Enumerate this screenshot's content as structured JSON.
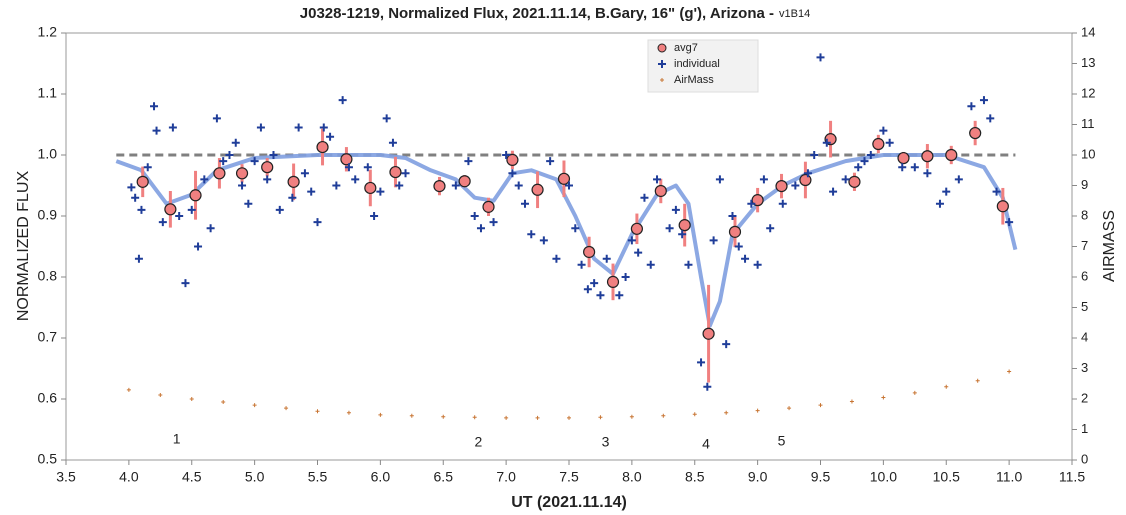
{
  "chart_data": {
    "type": "scatter",
    "title": "J0328-1219, Normalized Flux, 2021.11.14, B.Gary, 16\" (g'), Arizona -",
    "subtitle": "v1B14",
    "x_label": "UT (2021.11.14)",
    "y_label": "NORMALIZED FLUX",
    "y2_label": "AIRMASS",
    "xlim": [
      3.5,
      11.5
    ],
    "ylim": [
      0.5,
      1.2
    ],
    "y2lim": [
      0,
      14
    ],
    "xticks": [
      {
        "value": 3.5,
        "label": "3.5"
      },
      {
        "value": 4,
        "label": "4.0"
      },
      {
        "value": 4.5,
        "label": "4.5"
      },
      {
        "value": 5,
        "label": "5.0"
      },
      {
        "value": 5.5,
        "label": "5.5"
      },
      {
        "value": 6,
        "label": "6.0"
      },
      {
        "value": 6.5,
        "label": "6.5"
      },
      {
        "value": 7,
        "label": "7.0"
      },
      {
        "value": 7.5,
        "label": "7.5"
      },
      {
        "value": 8,
        "label": "8.0"
      },
      {
        "value": 8.5,
        "label": "8.5"
      },
      {
        "value": 9,
        "label": "9.0"
      },
      {
        "value": 9.5,
        "label": "9.5"
      },
      {
        "value": 10,
        "label": "10.0"
      },
      {
        "value": 10.5,
        "label": "10.5"
      },
      {
        "value": 11,
        "label": "11.0"
      },
      {
        "value": 11.5,
        "label": "11.5"
      }
    ],
    "yticks": [
      {
        "value": 0.5,
        "label": "0.5"
      },
      {
        "value": 0.6,
        "label": "0.6"
      },
      {
        "value": 0.7,
        "label": "0.7"
      },
      {
        "value": 0.8,
        "label": "0.8"
      },
      {
        "value": 0.9,
        "label": "0.9"
      },
      {
        "value": 1.0,
        "label": "1.0"
      },
      {
        "value": 1.1,
        "label": "1.1"
      },
      {
        "value": 1.2,
        "label": "1.2"
      }
    ],
    "y2ticks": [
      0,
      1,
      2,
      3,
      4,
      5,
      6,
      7,
      8,
      9,
      10,
      11,
      12,
      13,
      14
    ],
    "reference_line": {
      "y": 1.0,
      "x": [
        3.9,
        11.05
      ],
      "color": "#808080"
    },
    "model": {
      "color": "#7f9fe0",
      "x": [
        3.9,
        4.1,
        4.3,
        4.5,
        4.7,
        5.0,
        5.5,
        6.0,
        6.2,
        6.4,
        6.6,
        6.75,
        6.9,
        7.05,
        7.2,
        7.4,
        7.55,
        7.7,
        7.85,
        8.0,
        8.2,
        8.35,
        8.45,
        8.55,
        8.62,
        8.7,
        8.8,
        9.0,
        9.2,
        9.4,
        9.7,
        10.0,
        10.5,
        10.8,
        10.95,
        11.05
      ],
      "values": [
        0.99,
        0.975,
        0.92,
        0.935,
        0.975,
        0.995,
        1.0,
        1.0,
        0.995,
        0.975,
        0.96,
        0.93,
        0.925,
        0.97,
        0.975,
        0.96,
        0.9,
        0.83,
        0.805,
        0.87,
        0.935,
        0.95,
        0.92,
        0.8,
        0.72,
        0.76,
        0.87,
        0.92,
        0.95,
        0.97,
        0.99,
        1.0,
        1.0,
        0.98,
        0.93,
        0.845
      ]
    },
    "series": [
      {
        "name": "avg7",
        "color": "#f08080",
        "x": [
          4.11,
          4.33,
          4.53,
          4.72,
          4.9,
          5.1,
          5.31,
          5.54,
          5.73,
          5.92,
          6.12,
          6.47,
          6.67,
          6.86,
          7.05,
          7.25,
          7.46,
          7.66,
          7.85,
          8.04,
          8.23,
          8.42,
          8.61,
          8.82,
          9.0,
          9.19,
          9.38,
          9.58,
          9.77,
          9.96,
          10.16,
          10.35,
          10.54,
          10.73,
          10.95
        ],
        "values": [
          0.956,
          0.911,
          0.934,
          0.97,
          0.97,
          0.98,
          0.956,
          1.013,
          0.993,
          0.946,
          0.972,
          0.949,
          0.957,
          0.915,
          0.992,
          0.943,
          0.961,
          0.841,
          0.792,
          0.879,
          0.941,
          0.885,
          0.707,
          0.874,
          0.926,
          0.949,
          0.959,
          1.026,
          0.956,
          1.018,
          0.995,
          0.998,
          1.0,
          1.036,
          0.916
        ],
        "errors": [
          0.025,
          0.03,
          0.04,
          0.025,
          0.015,
          0.015,
          0.03,
          0.03,
          0.02,
          0.03,
          0.025,
          0.015,
          0.01,
          0.015,
          0.015,
          0.03,
          0.03,
          0.025,
          0.03,
          0.025,
          0.02,
          0.035,
          0.08,
          0.025,
          0.02,
          0.02,
          0.03,
          0.03,
          0.015,
          0.015,
          0.01,
          0.02,
          0.015,
          0.02,
          0.03
        ]
      },
      {
        "name": "individual",
        "color": "#1f3d99",
        "x": [
          4.02,
          4.05,
          4.08,
          4.1,
          4.15,
          4.2,
          4.22,
          4.27,
          4.35,
          4.4,
          4.45,
          4.5,
          4.55,
          4.6,
          4.65,
          4.7,
          4.75,
          4.8,
          4.85,
          4.9,
          4.95,
          5.0,
          5.05,
          5.1,
          5.15,
          5.2,
          5.3,
          5.35,
          5.4,
          5.45,
          5.5,
          5.55,
          5.6,
          5.65,
          5.7,
          5.75,
          5.8,
          5.9,
          5.95,
          6.0,
          6.05,
          6.1,
          6.15,
          6.2,
          6.6,
          6.7,
          6.75,
          6.8,
          6.9,
          7.0,
          7.05,
          7.1,
          7.15,
          7.2,
          7.3,
          7.35,
          7.4,
          7.5,
          7.55,
          7.6,
          7.65,
          7.7,
          7.75,
          7.8,
          7.9,
          7.95,
          8.0,
          8.05,
          8.1,
          8.15,
          8.2,
          8.3,
          8.35,
          8.4,
          8.45,
          8.55,
          8.6,
          8.65,
          8.7,
          8.75,
          8.8,
          8.85,
          8.9,
          8.95,
          9.0,
          9.05,
          9.1,
          9.2,
          9.3,
          9.4,
          9.45,
          9.5,
          9.55,
          9.6,
          9.7,
          9.8,
          9.85,
          9.9,
          10.0,
          10.05,
          10.15,
          10.25,
          10.35,
          10.45,
          10.5,
          10.6,
          10.7,
          10.8,
          10.85,
          10.9,
          11.0
        ],
        "values": [
          0.947,
          0.93,
          0.83,
          0.91,
          0.98,
          1.08,
          1.04,
          0.89,
          1.045,
          0.9,
          0.79,
          0.91,
          0.85,
          0.96,
          0.88,
          1.06,
          0.99,
          1.0,
          1.02,
          0.95,
          0.92,
          0.99,
          1.045,
          0.96,
          1.0,
          0.91,
          0.93,
          1.045,
          0.97,
          0.94,
          0.89,
          1.045,
          1.03,
          0.95,
          1.09,
          0.98,
          0.96,
          0.98,
          0.9,
          0.94,
          1.06,
          1.02,
          0.95,
          0.97,
          0.95,
          0.99,
          0.9,
          0.88,
          0.89,
          1.0,
          0.97,
          0.95,
          0.92,
          0.87,
          0.86,
          0.99,
          0.83,
          0.95,
          0.88,
          0.82,
          0.78,
          0.79,
          0.77,
          0.83,
          0.77,
          0.8,
          0.86,
          0.84,
          0.93,
          0.82,
          0.96,
          0.88,
          0.91,
          0.87,
          0.82,
          0.66,
          0.62,
          0.86,
          0.96,
          0.69,
          0.9,
          0.85,
          0.83,
          0.92,
          0.82,
          0.96,
          0.88,
          0.92,
          0.95,
          0.97,
          1.0,
          1.16,
          1.02,
          0.94,
          0.96,
          0.98,
          0.99,
          1.0,
          1.04,
          1.02,
          0.98,
          0.98,
          0.97,
          0.92,
          0.94,
          0.96,
          1.08,
          1.09,
          1.06,
          0.94,
          0.89
        ]
      },
      {
        "name": "AirMass",
        "color": "#c87533",
        "axis": "y2",
        "x": [
          4.0,
          4.25,
          4.5,
          4.75,
          5.0,
          5.25,
          5.5,
          5.75,
          6.0,
          6.25,
          6.5,
          6.75,
          7.0,
          7.25,
          7.5,
          7.75,
          8.0,
          8.25,
          8.5,
          8.75,
          9.0,
          9.25,
          9.5,
          9.75,
          10.0,
          10.25,
          10.5,
          10.75,
          11.0
        ],
        "values": [
          2.3,
          2.13,
          2.0,
          1.9,
          1.8,
          1.7,
          1.6,
          1.55,
          1.48,
          1.45,
          1.42,
          1.4,
          1.38,
          1.38,
          1.38,
          1.4,
          1.42,
          1.45,
          1.5,
          1.55,
          1.62,
          1.7,
          1.8,
          1.92,
          2.05,
          2.2,
          2.4,
          2.6,
          2.9
        ]
      }
    ],
    "annotations": [
      {
        "text": "1",
        "x": 4.38,
        "y": 0.533
      },
      {
        "text": "2",
        "x": 6.78,
        "y": 0.528
      },
      {
        "text": "3",
        "x": 7.79,
        "y": 0.528
      },
      {
        "text": "4",
        "x": 8.59,
        "y": 0.525
      },
      {
        "text": "5",
        "x": 9.19,
        "y": 0.53
      }
    ]
  }
}
